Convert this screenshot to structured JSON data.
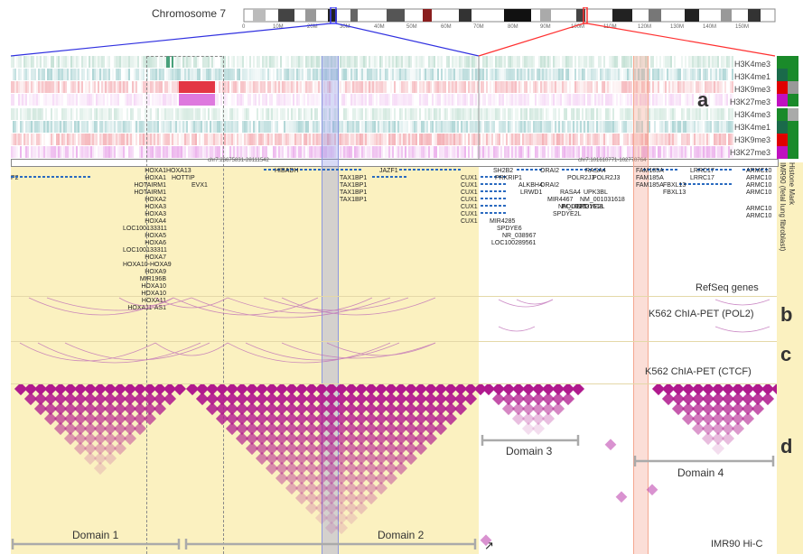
{
  "chromosome": {
    "label": "Chromosome 7",
    "ticks": [
      "0",
      "10M",
      "20M",
      "30M",
      "40M",
      "50M",
      "60M",
      "70M",
      "80M",
      "90M",
      "100M",
      "110M",
      "120M",
      "130M",
      "140M",
      "150M"
    ]
  },
  "tracks": {
    "histone_labels": [
      "H3K4me3",
      "H3K4me1",
      "H3K9me3",
      "H3K27me3",
      "H3K4me3",
      "H3K4me1",
      "H3K9me3",
      "H3K27me3"
    ],
    "coord_left": "chr7:26675831-28111542",
    "coord_right": "chr7:101610771-102770764",
    "side_label_1": "Histone Mark",
    "side_label_2": "IMR90 (fetal lung fibroblast)",
    "refseq": "RefSeq genes",
    "pol2": "K562 ChIA-PET (POL2)",
    "ctcf": "K562 ChIA-PET (CTCF)",
    "hic": "IMR90 Hi-C"
  },
  "panels": {
    "a": "a",
    "b": "b",
    "c": "c",
    "d": "d"
  },
  "domains": {
    "d1": "Domain 1",
    "d2": "Domain 2",
    "d3": "Domain 3",
    "d4": "Domain 4"
  },
  "genes_left": {
    "col1": [
      "HOXA1",
      "HOXA1",
      "HOTAIRM1",
      "HOTAIRM1",
      "HOXA2",
      "HOXA3",
      "HOXA3",
      "HOXA4",
      "LOC100133311",
      "HOXA5",
      "HOXA6",
      "LOC100133311",
      "HOXA7",
      "HOXA10-HOXA9",
      "HOXA9",
      "MIR196B",
      "HOXA10",
      "HOXA10",
      "HOXA11",
      "HOXA11-AS1"
    ],
    "hoxa13": "HOXA13",
    "hottip": "HOTTIP",
    "evx1": "EVX1",
    "p2": "P2",
    "hibadh": "HIBADH",
    "jazf1": "JAZF1",
    "tax": [
      "TAX1BP1",
      "TAX1BP1",
      "TAX1BP1",
      "TAX1BP1"
    ]
  },
  "genes_right": {
    "cux": [
      "CUX1",
      "CUX1",
      "CUX1",
      "CUX1",
      "CUX1",
      "CUX1",
      "CUX1"
    ],
    "c2": [
      "SH2B2",
      "PRKRIP1",
      "ALKBH4",
      "LRWD1",
      "MIR4467",
      "POLR2J"
    ],
    "c3": [
      "ORAI2",
      "POLR2J3",
      "ORAI2",
      "RASA4",
      "NM_001031618",
      "SPDYE2L"
    ],
    "c4": [
      "RASA4",
      "POLR2J3",
      "UPK3BL",
      "NM_001031618",
      "SPDYE2L"
    ],
    "c5": [
      "FAM185A",
      "FAM185A",
      "FAM185A"
    ],
    "c6": [
      "LRRC17",
      "LRRC17",
      "FBXL13",
      "FBXL13"
    ],
    "c7": [
      "ARMC10",
      "ARMC10",
      "ARMC10",
      "ARMC10",
      "ARMC10",
      "ARMC10"
    ],
    "lower": [
      "MIR4285",
      "SPDYE6",
      "NR_038967",
      "LOC100289561"
    ]
  },
  "colors": {
    "track_bg": "#fbf1c0",
    "pink": "#b01a8e",
    "blue_hl": "#8c97e0",
    "red_hl": "#f4a890"
  }
}
